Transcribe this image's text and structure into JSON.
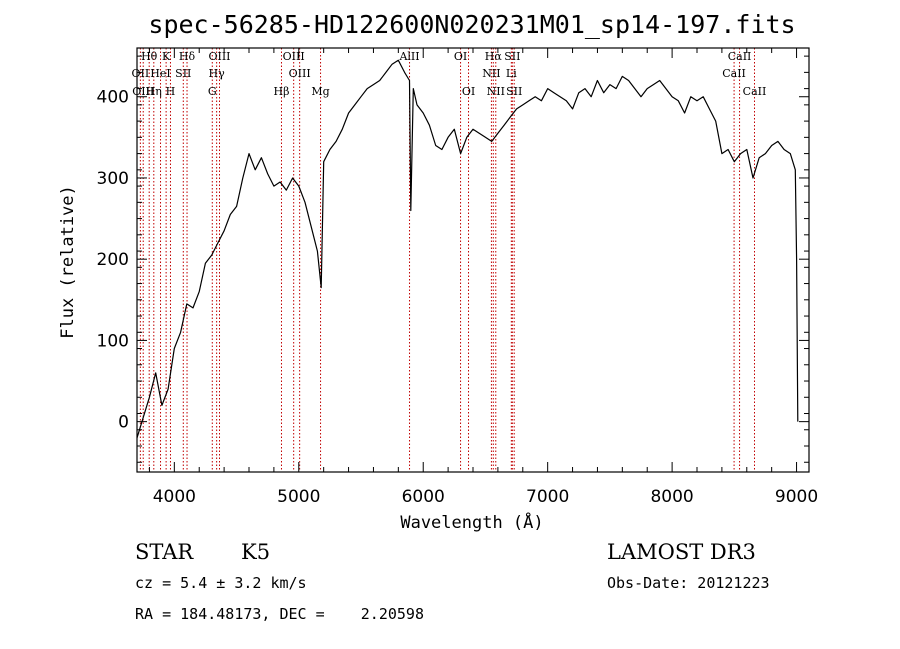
{
  "title": "spec-56285-HD122600N020231M01_sp14-197.fits",
  "info": {
    "class_label": "STAR",
    "subclass_label": "K5",
    "survey_label": "LAMOST DR3",
    "cz_text": "cz = 5.4 ± 3.2 km/s",
    "obs_date_text": "Obs-Date: 20121223",
    "radec_text": "RA = 184.48173, DEC =    2.20598"
  },
  "chart_data": {
    "type": "line",
    "title": "spec-56285-HD122600N020231M01_sp14-197.fits",
    "xlabel": "Wavelength (Å)",
    "ylabel": "Flux (relative)",
    "xlim": [
      3700,
      9100
    ],
    "ylim": [
      -62,
      460
    ],
    "xticks": [
      4000,
      5000,
      6000,
      7000,
      8000,
      9000
    ],
    "yticks": [
      0,
      100,
      200,
      300,
      400
    ],
    "series": [
      {
        "x": [
          3700,
          3750,
          3800,
          3850,
          3900,
          3950,
          4000,
          4050,
          4100,
          4150,
          4200,
          4250,
          4300,
          4350,
          4400,
          4450,
          4500,
          4550,
          4600,
          4650,
          4700,
          4750,
          4800,
          4850,
          4900,
          4950,
          5000,
          5050,
          5100,
          5150,
          5180,
          5200,
          5250,
          5300,
          5350,
          5400,
          5450,
          5500,
          5550,
          5600,
          5650,
          5700,
          5750,
          5800,
          5850,
          5890,
          5900,
          5920,
          5950,
          6000,
          6050,
          6100,
          6150,
          6200,
          6250,
          6300,
          6350,
          6400,
          6450,
          6500,
          6550,
          6600,
          6650,
          6700,
          6750,
          6800,
          6850,
          6900,
          6950,
          7000,
          7050,
          7100,
          7150,
          7200,
          7250,
          7300,
          7350,
          7400,
          7450,
          7500,
          7550,
          7600,
          7650,
          7700,
          7750,
          7800,
          7850,
          7900,
          7950,
          8000,
          8050,
          8100,
          8150,
          8200,
          8250,
          8300,
          8350,
          8400,
          8450,
          8500,
          8550,
          8600,
          8650,
          8700,
          8750,
          8800,
          8850,
          8900,
          8950,
          8990,
          9000,
          9010
        ],
        "y": [
          -20,
          5,
          30,
          60,
          20,
          40,
          90,
          110,
          145,
          140,
          160,
          195,
          205,
          220,
          235,
          255,
          265,
          300,
          330,
          310,
          325,
          305,
          290,
          295,
          285,
          300,
          290,
          270,
          240,
          210,
          165,
          320,
          335,
          345,
          360,
          380,
          390,
          400,
          410,
          415,
          420,
          430,
          440,
          445,
          430,
          420,
          260,
          410,
          390,
          380,
          365,
          340,
          335,
          350,
          360,
          330,
          350,
          360,
          355,
          350,
          345,
          355,
          365,
          375,
          385,
          390,
          395,
          400,
          395,
          410,
          405,
          400,
          395,
          385,
          405,
          410,
          400,
          420,
          405,
          415,
          410,
          425,
          420,
          410,
          400,
          410,
          415,
          420,
          410,
          400,
          395,
          380,
          400,
          395,
          400,
          385,
          370,
          330,
          335,
          320,
          330,
          335,
          300,
          325,
          330,
          340,
          345,
          335,
          330,
          310,
          200,
          0
        ]
      }
    ],
    "lines": [
      {
        "label": "Hθ",
        "x": 3798,
        "row": 0
      },
      {
        "label": "K",
        "x": 3934,
        "row": 0
      },
      {
        "label": "Hδ",
        "x": 4102,
        "row": 0
      },
      {
        "label": "OIII",
        "x": 4363,
        "row": 0
      },
      {
        "label": "OIII",
        "x": 4959,
        "row": 0
      },
      {
        "label": "AlII",
        "x": 5890,
        "row": 0
      },
      {
        "label": "OI",
        "x": 6300,
        "row": 0
      },
      {
        "label": "Hα",
        "x": 6563,
        "row": 0
      },
      {
        "label": "SII",
        "x": 6716,
        "row": 0
      },
      {
        "label": "CaII",
        "x": 8542,
        "row": 0
      },
      {
        "label": "OII",
        "x": 3727,
        "row": 1
      },
      {
        "label": "HeI",
        "x": 3889,
        "row": 1
      },
      {
        "label": "SII",
        "x": 4072,
        "row": 1
      },
      {
        "label": "Hγ",
        "x": 4340,
        "row": 1
      },
      {
        "label": "OIII",
        "x": 5007,
        "row": 1
      },
      {
        "label": "NII",
        "x": 6548,
        "row": 1
      },
      {
        "label": "Li",
        "x": 6708,
        "row": 1
      },
      {
        "label": "CaII",
        "x": 8498,
        "row": 1
      },
      {
        "label": "OIII",
        "x": 3750,
        "row": 2
      },
      {
        "label": "Hη",
        "x": 3835,
        "row": 2
      },
      {
        "label": "H",
        "x": 3969,
        "row": 2
      },
      {
        "label": "G",
        "x": 4305,
        "row": 2
      },
      {
        "label": "Hβ",
        "x": 4861,
        "row": 2
      },
      {
        "label": "Mg",
        "x": 5175,
        "row": 2
      },
      {
        "label": "OI",
        "x": 6364,
        "row": 2
      },
      {
        "label": "NII",
        "x": 6583,
        "row": 2
      },
      {
        "label": "SII",
        "x": 6731,
        "row": 2
      },
      {
        "label": "CaII",
        "x": 8662,
        "row": 2
      }
    ]
  }
}
